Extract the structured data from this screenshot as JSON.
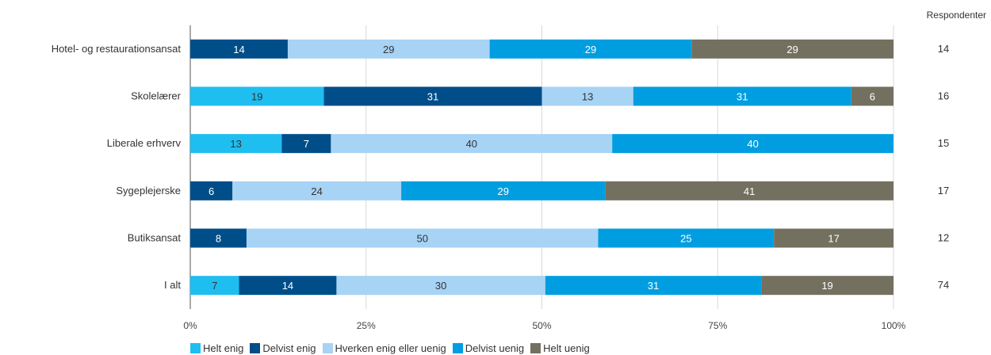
{
  "header": {
    "corner_text": "",
    "respondents_label": "Respondenter"
  },
  "chart_data": {
    "type": "bar",
    "orientation": "horizontal",
    "stacked": "percent",
    "title": "",
    "xlabel": "",
    "ylabel": "",
    "xlim": [
      0,
      100
    ],
    "x_ticks": [
      "0%",
      "25%",
      "50%",
      "75%",
      "100%"
    ],
    "grid": true,
    "legend_position": "bottom",
    "categories": [
      "Hotel- og restaurationsansat",
      "Skolelærer",
      "Liberale erhverv",
      "Sygeplejerske",
      "Butiksansat",
      "I alt"
    ],
    "respondents": [
      14,
      16,
      15,
      17,
      12,
      74
    ],
    "series": [
      {
        "name": "Helt enig",
        "color": "#1fbef0",
        "label_color": "#333333",
        "values": [
          0,
          19,
          13,
          0,
          0,
          7
        ]
      },
      {
        "name": "Delvist enig",
        "color": "#004e89",
        "label_color": "#ffffff",
        "values": [
          14,
          31,
          7,
          6,
          8,
          14
        ]
      },
      {
        "name": "Hverken enig eller uenig",
        "color": "#a7d3f5",
        "label_color": "#333333",
        "values": [
          29,
          13,
          40,
          24,
          50,
          30
        ]
      },
      {
        "name": "Delvist uenig",
        "color": "#009ee0",
        "label_color": "#ffffff",
        "values": [
          29,
          31,
          40,
          29,
          25,
          31
        ]
      },
      {
        "name": "Helt uenig",
        "color": "#747060",
        "label_color": "#ffffff",
        "values": [
          29,
          6,
          0,
          41,
          17,
          19
        ]
      }
    ]
  }
}
